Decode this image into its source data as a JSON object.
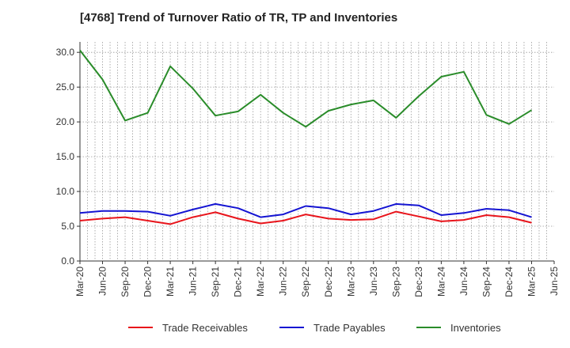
{
  "chart_data": {
    "type": "line",
    "title": "[4768]  Trend of Turnover Ratio of TR, TP and Inventories",
    "xlabel": "",
    "ylabel": "",
    "ylim": [
      0,
      31.5
    ],
    "yticks": [
      "0.0",
      "5.0",
      "10.0",
      "15.0",
      "20.0",
      "25.0",
      "30.0"
    ],
    "ytick_values": [
      0,
      5,
      10,
      15,
      20,
      25,
      30
    ],
    "xtick_labels": [
      "Mar-20",
      "Jun-20",
      "Sep-20",
      "Dec-20",
      "Mar-21",
      "Jun-21",
      "Sep-21",
      "Dec-21",
      "Mar-22",
      "Jun-22",
      "Sep-22",
      "Dec-22",
      "Mar-23",
      "Jun-23",
      "Sep-23",
      "Dec-23",
      "Mar-24",
      "Jun-24",
      "Sep-24",
      "Dec-24",
      "Mar-25",
      "Jun-25"
    ],
    "categories": [
      "Mar-20",
      "Jun-20",
      "Sep-20",
      "Dec-20",
      "Mar-21",
      "Jun-21",
      "Sep-21",
      "Dec-21",
      "Mar-22",
      "Jun-22",
      "Sep-22",
      "Dec-22",
      "Mar-23",
      "Jun-23",
      "Sep-23",
      "Dec-23",
      "Mar-24",
      "Jun-24",
      "Sep-24",
      "Dec-24",
      "Mar-25"
    ],
    "grid": true,
    "legend_position": "bottom",
    "series": [
      {
        "name": "Trade Receivables",
        "color": "#e8141b",
        "values": [
          5.8,
          6.1,
          6.3,
          5.8,
          5.3,
          6.3,
          7.0,
          6.1,
          5.4,
          5.8,
          6.7,
          6.1,
          5.9,
          6.0,
          7.1,
          6.4,
          5.7,
          5.9,
          6.6,
          6.3,
          5.5
        ]
      },
      {
        "name": "Trade Payables",
        "color": "#1414d2",
        "values": [
          6.9,
          7.2,
          7.2,
          7.1,
          6.5,
          7.4,
          8.2,
          7.6,
          6.3,
          6.7,
          7.9,
          7.6,
          6.7,
          7.2,
          8.2,
          8.0,
          6.6,
          6.9,
          7.5,
          7.3,
          6.3
        ]
      },
      {
        "name": "Inventories",
        "color": "#2a8c2a",
        "values": [
          30.3,
          26.1,
          20.2,
          21.3,
          28.0,
          24.8,
          20.9,
          21.5,
          23.9,
          21.3,
          19.3,
          21.6,
          22.5,
          23.1,
          20.6,
          23.7,
          26.5,
          27.2,
          21.0,
          19.7,
          21.7
        ]
      }
    ]
  }
}
